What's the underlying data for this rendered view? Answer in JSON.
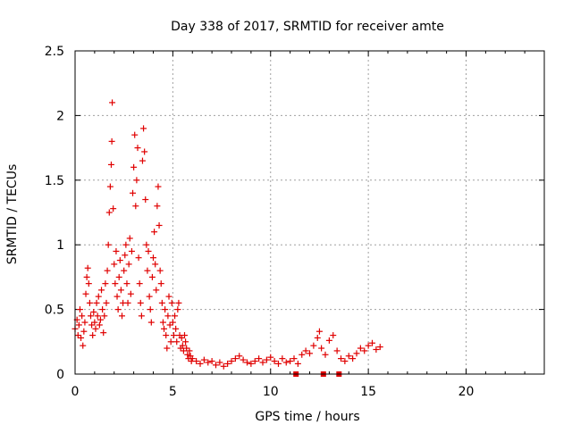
{
  "chart_data": {
    "type": "scatter",
    "title": "Day 338 of 2017, SRMTID for receiver amte",
    "xlabel": "GPS time / hours",
    "ylabel": "SRMTID / TECUs",
    "xlim": [
      0,
      24
    ],
    "ylim": [
      0,
      2.5
    ],
    "xticks": [
      "0",
      "5",
      "10",
      "15",
      "20"
    ],
    "yticks": [
      "0",
      "0.5",
      "1",
      "1.5",
      "2",
      "2.5"
    ],
    "grid": true,
    "marker": "+",
    "color": "#e00000",
    "series": [
      {
        "values": [
          [
            0.0,
            0.35
          ],
          [
            0.1,
            0.42
          ],
          [
            0.15,
            0.3
          ],
          [
            0.2,
            0.38
          ],
          [
            0.25,
            0.5
          ],
          [
            0.3,
            0.28
          ],
          [
            0.35,
            0.45
          ],
          [
            0.4,
            0.22
          ],
          [
            0.45,
            0.33
          ],
          [
            0.5,
            0.4
          ],
          [
            0.55,
            0.62
          ],
          [
            0.6,
            0.75
          ],
          [
            0.65,
            0.82
          ],
          [
            0.7,
            0.7
          ],
          [
            0.75,
            0.55
          ],
          [
            0.8,
            0.45
          ],
          [
            0.85,
            0.38
          ],
          [
            0.9,
            0.3
          ],
          [
            0.95,
            0.48
          ],
          [
            1.0,
            0.4
          ],
          [
            1.05,
            0.35
          ],
          [
            1.1,
            0.55
          ],
          [
            1.15,
            0.45
          ],
          [
            1.2,
            0.6
          ],
          [
            1.25,
            0.38
          ],
          [
            1.3,
            0.42
          ],
          [
            1.35,
            0.65
          ],
          [
            1.4,
            0.5
          ],
          [
            1.45,
            0.32
          ],
          [
            1.5,
            0.45
          ],
          [
            1.55,
            0.7
          ],
          [
            1.6,
            0.55
          ],
          [
            1.65,
            0.8
          ],
          [
            1.7,
            1.0
          ],
          [
            1.75,
            1.25
          ],
          [
            1.8,
            1.45
          ],
          [
            1.85,
            1.62
          ],
          [
            1.88,
            1.8
          ],
          [
            1.9,
            2.1
          ],
          [
            1.95,
            1.28
          ],
          [
            2.0,
            0.85
          ],
          [
            2.05,
            0.7
          ],
          [
            2.1,
            0.95
          ],
          [
            2.15,
            0.6
          ],
          [
            2.2,
            0.5
          ],
          [
            2.25,
            0.75
          ],
          [
            2.3,
            0.88
          ],
          [
            2.35,
            0.65
          ],
          [
            2.4,
            0.45
          ],
          [
            2.45,
            0.55
          ],
          [
            2.5,
            0.8
          ],
          [
            2.55,
            0.92
          ],
          [
            2.6,
            1.0
          ],
          [
            2.65,
            0.7
          ],
          [
            2.7,
            0.55
          ],
          [
            2.75,
            0.85
          ],
          [
            2.8,
            1.05
          ],
          [
            2.85,
            0.62
          ],
          [
            2.9,
            0.95
          ],
          [
            2.95,
            1.4
          ],
          [
            3.0,
            1.6
          ],
          [
            3.05,
            1.85
          ],
          [
            3.1,
            1.3
          ],
          [
            3.15,
            1.5
          ],
          [
            3.2,
            1.75
          ],
          [
            3.25,
            0.9
          ],
          [
            3.3,
            0.7
          ],
          [
            3.35,
            0.55
          ],
          [
            3.4,
            0.45
          ],
          [
            3.45,
            1.65
          ],
          [
            3.5,
            1.9
          ],
          [
            3.55,
            1.72
          ],
          [
            3.6,
            1.35
          ],
          [
            3.65,
            1.0
          ],
          [
            3.7,
            0.8
          ],
          [
            3.75,
            0.95
          ],
          [
            3.8,
            0.6
          ],
          [
            3.85,
            0.5
          ],
          [
            3.9,
            0.4
          ],
          [
            3.95,
            0.75
          ],
          [
            4.0,
            0.9
          ],
          [
            4.05,
            1.1
          ],
          [
            4.1,
            0.85
          ],
          [
            4.15,
            0.65
          ],
          [
            4.2,
            1.3
          ],
          [
            4.25,
            1.45
          ],
          [
            4.3,
            1.15
          ],
          [
            4.35,
            0.8
          ],
          [
            4.4,
            0.7
          ],
          [
            4.45,
            0.55
          ],
          [
            4.5,
            0.4
          ],
          [
            4.55,
            0.35
          ],
          [
            4.6,
            0.5
          ],
          [
            4.65,
            0.3
          ],
          [
            4.7,
            0.2
          ],
          [
            4.75,
            0.45
          ],
          [
            4.8,
            0.6
          ],
          [
            4.85,
            0.38
          ],
          [
            4.9,
            0.25
          ],
          [
            4.95,
            0.55
          ],
          [
            5.0,
            0.4
          ],
          [
            5.05,
            0.3
          ],
          [
            5.1,
            0.45
          ],
          [
            5.15,
            0.35
          ],
          [
            5.2,
            0.25
          ],
          [
            5.25,
            0.5
          ],
          [
            5.3,
            0.55
          ],
          [
            5.35,
            0.3
          ],
          [
            5.4,
            0.2
          ],
          [
            5.45,
            0.28
          ],
          [
            5.5,
            0.22
          ],
          [
            5.55,
            0.18
          ],
          [
            5.6,
            0.3
          ],
          [
            5.65,
            0.25
          ],
          [
            5.7,
            0.2
          ],
          [
            5.75,
            0.15
          ],
          [
            5.8,
            0.12
          ],
          [
            5.85,
            0.18
          ],
          [
            5.9,
            0.14
          ],
          [
            5.95,
            0.1
          ],
          [
            6.0,
            0.12
          ],
          [
            6.2,
            0.1
          ],
          [
            6.4,
            0.08
          ],
          [
            6.6,
            0.11
          ],
          [
            6.8,
            0.09
          ],
          [
            7.0,
            0.1
          ],
          [
            7.2,
            0.07
          ],
          [
            7.4,
            0.09
          ],
          [
            7.6,
            0.06
          ],
          [
            7.8,
            0.08
          ],
          [
            8.0,
            0.1
          ],
          [
            8.2,
            0.12
          ],
          [
            8.4,
            0.14
          ],
          [
            8.6,
            0.11
          ],
          [
            8.8,
            0.09
          ],
          [
            9.0,
            0.08
          ],
          [
            9.2,
            0.1
          ],
          [
            9.4,
            0.12
          ],
          [
            9.6,
            0.09
          ],
          [
            9.8,
            0.11
          ],
          [
            10.0,
            0.13
          ],
          [
            10.2,
            0.1
          ],
          [
            10.4,
            0.08
          ],
          [
            10.6,
            0.12
          ],
          [
            10.8,
            0.09
          ],
          [
            11.0,
            0.1
          ],
          [
            11.2,
            0.12
          ],
          [
            11.4,
            0.08
          ],
          [
            11.6,
            0.15
          ],
          [
            11.8,
            0.18
          ],
          [
            12.0,
            0.16
          ],
          [
            12.2,
            0.22
          ],
          [
            12.4,
            0.28
          ],
          [
            12.5,
            0.33
          ],
          [
            12.6,
            0.2
          ],
          [
            12.8,
            0.15
          ],
          [
            13.0,
            0.26
          ],
          [
            13.2,
            0.3
          ],
          [
            13.4,
            0.18
          ],
          [
            13.6,
            0.12
          ],
          [
            13.8,
            0.1
          ],
          [
            14.0,
            0.14
          ],
          [
            14.2,
            0.12
          ],
          [
            14.4,
            0.16
          ],
          [
            14.6,
            0.2
          ],
          [
            14.8,
            0.18
          ],
          [
            15.0,
            0.22
          ],
          [
            15.2,
            0.24
          ],
          [
            15.4,
            0.19
          ],
          [
            15.6,
            0.21
          ]
        ]
      }
    ],
    "zero_markers": [
      11.3,
      12.7,
      13.5
    ]
  }
}
